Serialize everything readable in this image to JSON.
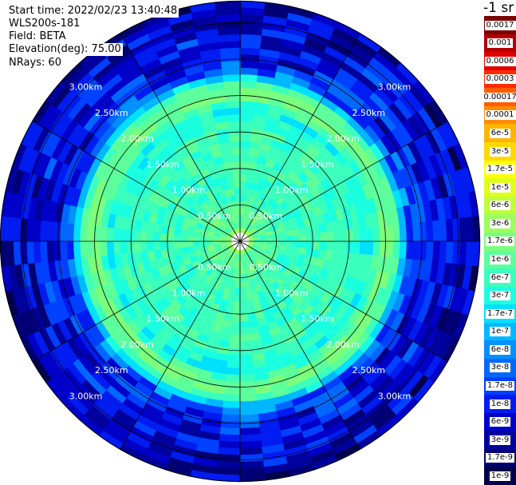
{
  "info": {
    "start_time": "Start time: 2022/02/23 13:40:48",
    "device": "WLS200s-181",
    "field": "Field: BETA",
    "elevation": "Elevation(deg): 75.00",
    "nrays": "NRays: 60"
  },
  "colorbar": {
    "unit": "-1 sr",
    "labels": [
      "0.0017",
      "0.001",
      "0.0006",
      "0.0003",
      "0.00017",
      "0.0001",
      "6e-5",
      "3e-5",
      "1.7e-5",
      "1e-5",
      "6e-6",
      "3e-6",
      "1.7e-6",
      "1e-6",
      "6e-7",
      "3e-7",
      "1.7e-7",
      "1e-7",
      "6e-8",
      "3e-8",
      "1.7e-8",
      "1e-8",
      "6e-9",
      "3e-9",
      "1.7e-9",
      "1e-9"
    ],
    "colors": [
      "#7a0000",
      "#b30000",
      "#e00000",
      "#ff2a00",
      "#ff5c00",
      "#ff8c00",
      "#ffb400",
      "#ffd800",
      "#ffff00",
      "#e0ff1a",
      "#bfff3a",
      "#9bff5c",
      "#7cff7c",
      "#5cff9b",
      "#3affbd",
      "#1affe0",
      "#00e0ff",
      "#00b8ff",
      "#0090ff",
      "#0068ff",
      "#0040ff",
      "#001cf0",
      "#0000c8",
      "#00009c",
      "#000074",
      "#00004c"
    ]
  },
  "chart_data": {
    "type": "heatmap",
    "projection": "polar (PPI scan)",
    "nrays": 60,
    "range_unit": "km",
    "range_rings_km": [
      0.5,
      1.0,
      1.5,
      2.0,
      2.5,
      3.0
    ],
    "ring_labels": [
      "0.50km",
      "1.00km",
      "1.50km",
      "2.00km",
      "2.50km",
      "3.00km"
    ],
    "max_range_km": 3.3,
    "spoke_angles_deg": [
      0,
      30,
      60,
      90,
      120,
      150,
      180,
      210,
      240,
      270,
      300,
      330
    ],
    "radial_profile": {
      "range_km": [
        0.05,
        0.2,
        0.4,
        0.6,
        0.9,
        1.2,
        1.5,
        1.8,
        2.0,
        2.1,
        2.2,
        2.3,
        2.5,
        2.7,
        3.0,
        3.3
      ],
      "beta": [
        "1e-5",
        "1e-6",
        "1e-6",
        "6e-7",
        "6e-7",
        "6e-7",
        "6e-7",
        "3e-7",
        "1.7e-6",
        "1e-6",
        "6e-7",
        "3e-8",
        "1e-8",
        "1e-8",
        "6e-9",
        "3e-9"
      ]
    },
    "grid": true
  }
}
